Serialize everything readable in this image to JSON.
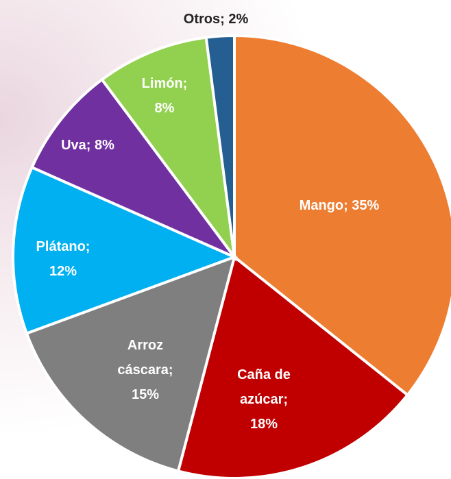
{
  "chart_data": {
    "type": "pie",
    "categories": [
      "Mango",
      "Caña de azúcar",
      "Arroz cáscara",
      "Plátano",
      "Uva",
      "Limón",
      "Otros"
    ],
    "values": [
      35,
      18,
      15,
      12,
      8,
      8,
      2
    ],
    "value_labels": [
      "Mango; 35%",
      "Caña de azúcar; 18%",
      "Arroz cáscara; 15%",
      "Plátano; 12%",
      "Uva; 8%",
      "Limón; 8%",
      "Otros; 2%"
    ],
    "colors": [
      "#ED7D31",
      "#C00000",
      "#7F7F7F",
      "#00B0F0",
      "#7030A0",
      "#92D050",
      "#255E91"
    ]
  }
}
